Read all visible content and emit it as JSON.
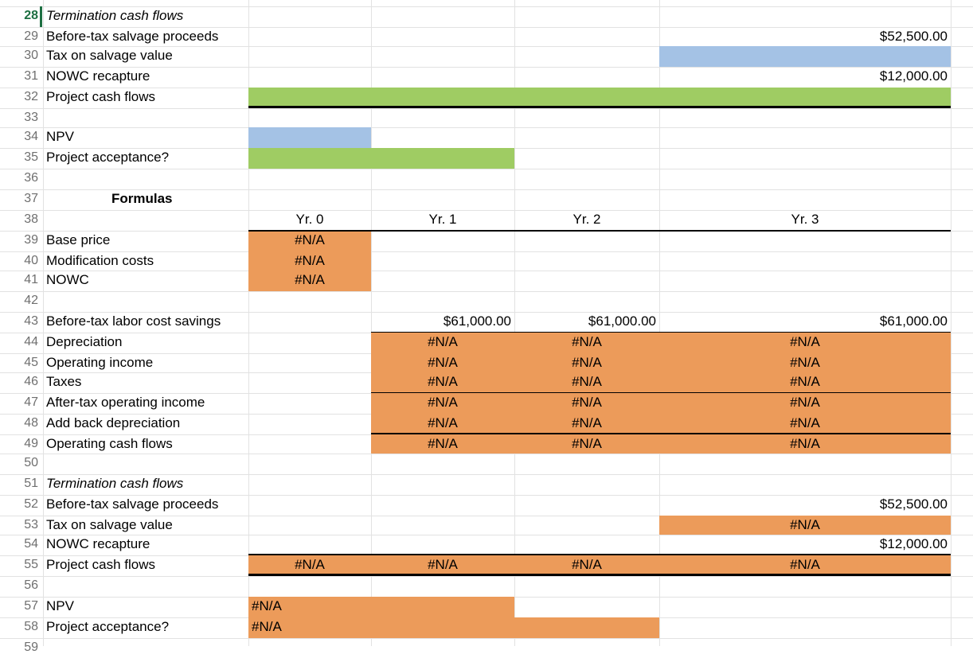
{
  "colors": {
    "blue_fill": "#a4c2e5",
    "green_fill": "#9fcc63",
    "orange_fill": "#ec9b5a",
    "row_number": "#6f6f6f",
    "selected_row": "#1d6f42"
  },
  "selected_row": "28",
  "rows": {
    "28": {
      "num": "28",
      "label": "Termination cash flows"
    },
    "29": {
      "num": "29",
      "label": "Before-tax salvage proceeds",
      "y3": "$52,500.00"
    },
    "30": {
      "num": "30",
      "label": "Tax on salvage value"
    },
    "31": {
      "num": "31",
      "label": "NOWC recapture",
      "y3": "$12,000.00"
    },
    "32": {
      "num": "32",
      "label": "Project cash flows"
    },
    "33": {
      "num": "33"
    },
    "34": {
      "num": "34",
      "label": "NPV"
    },
    "35": {
      "num": "35",
      "label": "Project acceptance?"
    },
    "36": {
      "num": "36"
    },
    "37": {
      "num": "37",
      "label": "Formulas"
    },
    "38": {
      "num": "38",
      "y0": "Yr. 0",
      "y1": "Yr. 1",
      "y2": "Yr. 2",
      "y3": "Yr. 3"
    },
    "39": {
      "num": "39",
      "label": "Base price",
      "y0": "#N/A"
    },
    "40": {
      "num": "40",
      "label": "Modification costs",
      "y0": "#N/A"
    },
    "41": {
      "num": "41",
      "label": "NOWC",
      "y0": "#N/A"
    },
    "42": {
      "num": "42"
    },
    "43": {
      "num": "43",
      "label": "Before-tax labor cost savings",
      "y1": "$61,000.00",
      "y2": "$61,000.00",
      "y3": "$61,000.00"
    },
    "44": {
      "num": "44",
      "label": "Depreciation",
      "y1": "#N/A",
      "y2": "#N/A",
      "y3": "#N/A"
    },
    "45": {
      "num": "45",
      "label": "Operating income",
      "y1": "#N/A",
      "y2": "#N/A",
      "y3": "#N/A"
    },
    "46": {
      "num": "46",
      "label": "Taxes",
      "y1": "#N/A",
      "y2": "#N/A",
      "y3": "#N/A"
    },
    "47": {
      "num": "47",
      "label": "After-tax operating income",
      "y1": "#N/A",
      "y2": "#N/A",
      "y3": "#N/A"
    },
    "48": {
      "num": "48",
      "label": "Add back depreciation",
      "y1": "#N/A",
      "y2": "#N/A",
      "y3": "#N/A"
    },
    "49": {
      "num": "49",
      "label": "Operating cash flows",
      "y1": "#N/A",
      "y2": "#N/A",
      "y3": "#N/A"
    },
    "50": {
      "num": "50"
    },
    "51": {
      "num": "51",
      "label": "Termination cash flows"
    },
    "52": {
      "num": "52",
      "label": "Before-tax salvage proceeds",
      "y3": "$52,500.00"
    },
    "53": {
      "num": "53",
      "label": "Tax on salvage value",
      "y3": "#N/A"
    },
    "54": {
      "num": "54",
      "label": "NOWC recapture",
      "y3": "$12,000.00"
    },
    "55": {
      "num": "55",
      "label": "Project cash flows",
      "y0": "#N/A",
      "y1": "#N/A",
      "y2": "#N/A",
      "y3": "#N/A"
    },
    "56": {
      "num": "56"
    },
    "57": {
      "num": "57",
      "label": "NPV",
      "y0": "#N/A"
    },
    "58": {
      "num": "58",
      "label": "Project acceptance?",
      "y0": "#N/A"
    },
    "59": {
      "num": "59"
    }
  }
}
